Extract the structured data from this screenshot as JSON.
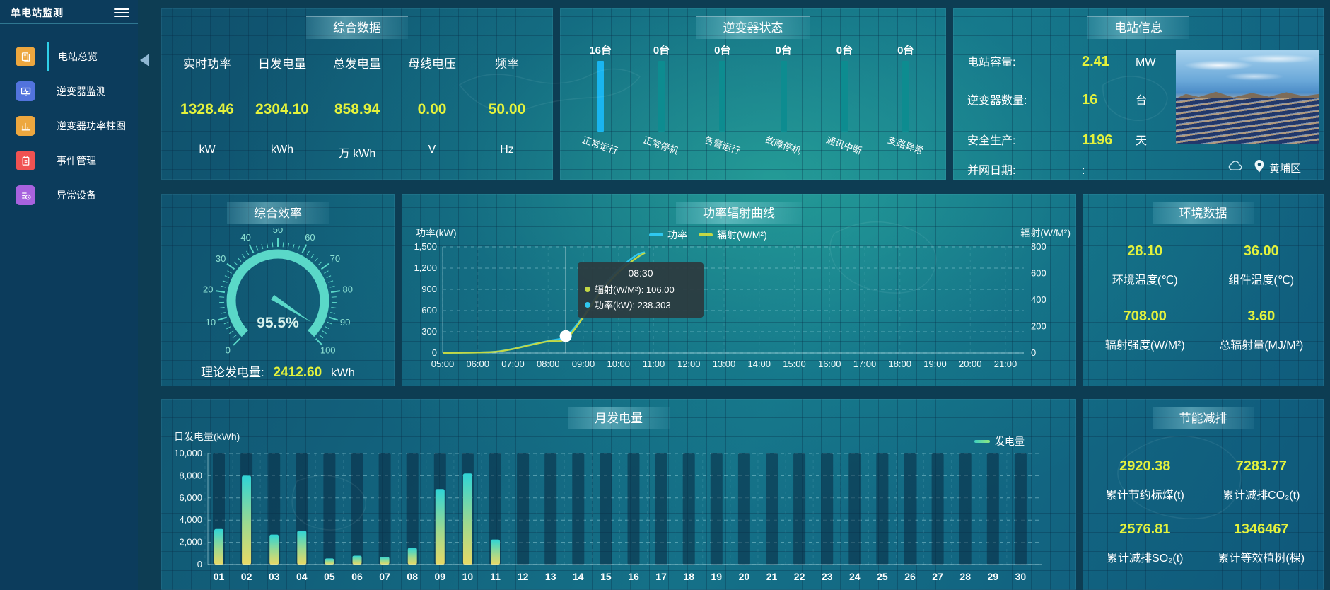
{
  "app": {
    "title": "单电站监测"
  },
  "colors": {
    "accent_yellow": "#e4f23c",
    "power_cyan": "#2fc8f0",
    "radiation_yellow": "#c3d845",
    "gauge_teal": "#5ad8c8",
    "inverter_active": "#19b5f0",
    "inverter_idle": "#0d8c90",
    "sidebar_bg": "#0c3c5c",
    "legend_green": "#6fe3a0"
  },
  "sidebar": {
    "items": [
      {
        "label": "电站总览",
        "icon": "station-overview",
        "color": "#eda73f",
        "active": true
      },
      {
        "label": "逆变器监测",
        "icon": "inverter-monitor",
        "color": "#5273dd",
        "active": false
      },
      {
        "label": "逆变器功率柱图",
        "icon": "inverter-power-bars",
        "color": "#eda73f",
        "active": false
      },
      {
        "label": "事件管理",
        "icon": "event-management",
        "color": "#f05252",
        "active": false
      },
      {
        "label": "异常设备",
        "icon": "abnormal-device",
        "color": "#a862de",
        "active": false
      }
    ]
  },
  "overview": {
    "title": "综合数据",
    "metrics": [
      {
        "label": "实时功率",
        "value": "1328.46",
        "unit": "kW"
      },
      {
        "label": "日发电量",
        "value": "2304.10",
        "unit": "kWh"
      },
      {
        "label": "总发电量",
        "value": "858.94",
        "unit": "万 kWh"
      },
      {
        "label": "母线电压",
        "value": "0.00",
        "unit": "V"
      },
      {
        "label": "频率",
        "value": "50.00",
        "unit": "Hz"
      }
    ]
  },
  "inverter_status": {
    "title": "逆变器状态",
    "items": [
      {
        "count": "16台",
        "label": "正常运行"
      },
      {
        "count": "0台",
        "label": "正常停机"
      },
      {
        "count": "0台",
        "label": "告警运行"
      },
      {
        "count": "0台",
        "label": "故障停机"
      },
      {
        "count": "0台",
        "label": "通讯中断"
      },
      {
        "count": "0台",
        "label": "支路异常"
      }
    ]
  },
  "station_info": {
    "title": "电站信息",
    "rows": [
      {
        "label": "电站容量:",
        "value": "2.41",
        "unit": "MW"
      },
      {
        "label": "逆变器数量:",
        "value": "16",
        "unit": "台"
      },
      {
        "label": "安全生产:",
        "value": "1196",
        "unit": "天"
      },
      {
        "label": "并网日期:",
        "value": ":",
        "unit": ""
      }
    ],
    "location": "黄埔区"
  },
  "efficiency": {
    "title": "综合效率",
    "gauge_label": "95.5%",
    "theory_label": "理论发电量:",
    "theory_value": "2412.60",
    "theory_unit": "kWh"
  },
  "power_curve": {
    "title": "功率辐射曲线",
    "left_axis_name": "功率(kW)",
    "right_axis_name": "辐射(W/M²)",
    "legend": [
      {
        "label": "功率",
        "color": "#2fc8f0"
      },
      {
        "label": "辐射(W/M²)",
        "color": "#c3d845"
      }
    ],
    "tooltip": {
      "time": "08:30",
      "radiation_text": "辐射(W/M²): 106.00",
      "power_text": "功率(kW): 238.303"
    }
  },
  "environment": {
    "title": "环境数据",
    "metrics": [
      {
        "value": "28.10",
        "label": "环境温度(℃)"
      },
      {
        "value": "36.00",
        "label": "组件温度(℃)"
      },
      {
        "value": "708.00",
        "label": "辐射强度(W/M²)"
      },
      {
        "value": "3.60",
        "label": "总辐射量(MJ/M²)"
      }
    ]
  },
  "monthly": {
    "title": "月发电量",
    "ylabel": "日发电量(kWh)",
    "legend": "发电量"
  },
  "saving": {
    "title": "节能减排",
    "metrics": [
      {
        "value": "2920.38",
        "label": "累计节约标煤(t)"
      },
      {
        "value": "7283.77",
        "label": "累计减排CO₂(t)"
      },
      {
        "value": "2576.81",
        "label": "累计减排SO₂(t)"
      },
      {
        "value": "1346467",
        "label": "累计等效植树(棵)"
      }
    ]
  },
  "chart_data": [
    {
      "type": "line",
      "title": "功率辐射曲线",
      "x": [
        "05:00",
        "05:30",
        "06:00",
        "06:30",
        "07:00",
        "07:30",
        "08:00",
        "08:30",
        "09:00",
        "09:30",
        "10:00",
        "10:30",
        "10:45"
      ],
      "series": [
        {
          "name": "功率",
          "axis": "left",
          "color": "#2fc8f0",
          "values": [
            2,
            4,
            8,
            18,
            60,
            120,
            170,
            238.303,
            520,
            900,
            1180,
            1380,
            1425
          ]
        },
        {
          "name": "辐射(W/M²)",
          "axis": "right",
          "color": "#c3d845",
          "values": [
            1,
            2,
            4,
            9,
            30,
            60,
            88,
            106,
            270,
            460,
            610,
            715,
            755
          ]
        }
      ],
      "xlabels": [
        "05:00",
        "06:00",
        "07:00",
        "08:00",
        "09:00",
        "10:00",
        "11:00",
        "12:00",
        "13:00",
        "14:00",
        "15:00",
        "16:00",
        "17:00",
        "18:00",
        "19:00",
        "20:00",
        "21:00"
      ],
      "x_range_hours": [
        5,
        21
      ],
      "left_ylim": [
        0,
        1500
      ],
      "left_ticks": [
        0,
        300,
        600,
        900,
        1200,
        1500
      ],
      "right_ylim": [
        0,
        800
      ],
      "right_ticks": [
        0,
        200,
        400,
        600,
        800
      ],
      "legend_position": "top",
      "grid": true,
      "marker": {
        "time": "08:30",
        "power": 238.303,
        "radiation": 106.0
      }
    },
    {
      "type": "bar",
      "title": "月发电量",
      "categories": [
        "01",
        "02",
        "03",
        "04",
        "05",
        "06",
        "07",
        "08",
        "09",
        "10",
        "11",
        "12",
        "13",
        "14",
        "15",
        "16",
        "17",
        "18",
        "19",
        "20",
        "21",
        "22",
        "23",
        "24",
        "25",
        "26",
        "27",
        "28",
        "29",
        "30"
      ],
      "values": [
        3200,
        8000,
        2700,
        3050,
        550,
        800,
        700,
        1500,
        6800,
        8200,
        2250,
        0,
        0,
        0,
        0,
        0,
        0,
        0,
        0,
        0,
        0,
        0,
        0,
        0,
        0,
        0,
        0,
        0,
        0,
        0
      ],
      "ylabel": "日发电量(kWh)",
      "ylim": [
        0,
        10000
      ],
      "yticks": [
        0,
        2000,
        4000,
        6000,
        8000,
        10000
      ],
      "legend": "发电量",
      "grid": true
    },
    {
      "type": "gauge",
      "title": "综合效率",
      "value": 95.5,
      "min": 0,
      "max": 100,
      "major_ticks": [
        0,
        10,
        20,
        30,
        40,
        50,
        60,
        70,
        80,
        90,
        100
      ],
      "label": "95.5%"
    },
    {
      "type": "bar",
      "title": "逆变器状态",
      "categories": [
        "正常运行",
        "正常停机",
        "告警运行",
        "故障停机",
        "通讯中断",
        "支路异常"
      ],
      "values": [
        16,
        0,
        0,
        0,
        0,
        0
      ],
      "unit": "台"
    }
  ]
}
